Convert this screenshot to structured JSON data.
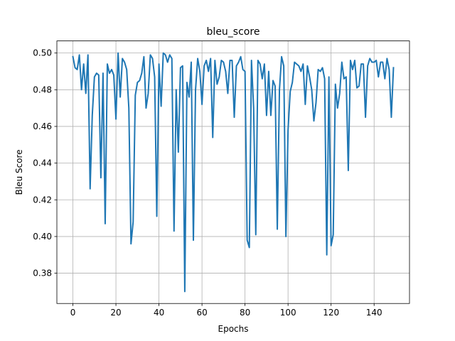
{
  "chart_data": {
    "type": "line",
    "title": "bleu_score",
    "xlabel": "Epochs",
    "ylabel": "Bleu Score",
    "xlim": [
      -7.45,
      156.45
    ],
    "ylim": [
      0.3635,
      0.5066
    ],
    "xticks": [
      0,
      20,
      40,
      60,
      80,
      100,
      120,
      140
    ],
    "xtick_labels": [
      "0",
      "20",
      "40",
      "60",
      "80",
      "100",
      "120",
      "140"
    ],
    "yticks": [
      0.38,
      0.4,
      0.42,
      0.44,
      0.46,
      0.48,
      0.5
    ],
    "ytick_labels": [
      "0.38",
      "0.40",
      "0.42",
      "0.44",
      "0.46",
      "0.48",
      "0.50"
    ],
    "grid": true,
    "line_color": "#1f77b4",
    "series": [
      {
        "name": "",
        "x": [
          0,
          1,
          2,
          3,
          4,
          5,
          6,
          7,
          8,
          9,
          10,
          11,
          12,
          13,
          14,
          15,
          16,
          17,
          18,
          19,
          20,
          21,
          22,
          23,
          24,
          25,
          26,
          27,
          28,
          29,
          30,
          31,
          32,
          33,
          34,
          35,
          36,
          37,
          38,
          39,
          40,
          41,
          42,
          43,
          44,
          45,
          46,
          47,
          48,
          49,
          50,
          51,
          52,
          53,
          54,
          55,
          56,
          57,
          58,
          59,
          60,
          61,
          62,
          63,
          64,
          65,
          66,
          67,
          68,
          69,
          70,
          71,
          72,
          73,
          74,
          75,
          76,
          77,
          78,
          79,
          80,
          81,
          82,
          83,
          84,
          85,
          86,
          87,
          88,
          89,
          90,
          91,
          92,
          93,
          94,
          95,
          96,
          97,
          98,
          99,
          100,
          101,
          102,
          103,
          104,
          105,
          106,
          107,
          108,
          109,
          110,
          111,
          112,
          113,
          114,
          115,
          116,
          117,
          118,
          119,
          120,
          121,
          122,
          123,
          124,
          125,
          126,
          127,
          128,
          129,
          130,
          131,
          132,
          133,
          134,
          135,
          136,
          137,
          138,
          139,
          140,
          141,
          142,
          143,
          144,
          145,
          146,
          147,
          148,
          149
        ],
        "values": [
          0.498,
          0.492,
          0.491,
          0.499,
          0.48,
          0.494,
          0.478,
          0.499,
          0.426,
          0.466,
          0.487,
          0.489,
          0.488,
          0.432,
          0.489,
          0.407,
          0.494,
          0.489,
          0.491,
          0.488,
          0.464,
          0.5,
          0.476,
          0.497,
          0.495,
          0.491,
          0.47,
          0.396,
          0.408,
          0.477,
          0.484,
          0.485,
          0.489,
          0.498,
          0.47,
          0.478,
          0.499,
          0.497,
          0.487,
          0.411,
          0.494,
          0.471,
          0.5,
          0.499,
          0.495,
          0.499,
          0.497,
          0.403,
          0.48,
          0.446,
          0.492,
          0.493,
          0.37,
          0.484,
          0.476,
          0.495,
          0.398,
          0.48,
          0.497,
          0.49,
          0.472,
          0.493,
          0.496,
          0.49,
          0.497,
          0.454,
          0.496,
          0.483,
          0.487,
          0.496,
          0.495,
          0.49,
          0.478,
          0.496,
          0.496,
          0.465,
          0.493,
          0.495,
          0.498,
          0.491,
          0.49,
          0.398,
          0.394,
          0.496,
          0.47,
          0.401,
          0.496,
          0.494,
          0.486,
          0.494,
          0.466,
          0.49,
          0.466,
          0.485,
          0.482,
          0.404,
          0.48,
          0.498,
          0.493,
          0.4,
          0.458,
          0.479,
          0.484,
          0.495,
          0.494,
          0.493,
          0.49,
          0.494,
          0.472,
          0.493,
          0.487,
          0.48,
          0.463,
          0.473,
          0.491,
          0.49,
          0.492,
          0.486,
          0.39,
          0.487,
          0.395,
          0.401,
          0.483,
          0.47,
          0.478,
          0.495,
          0.486,
          0.487,
          0.436,
          0.496,
          0.491,
          0.496,
          0.481,
          0.482,
          0.494,
          0.494,
          0.465,
          0.493,
          0.497,
          0.495,
          0.495,
          0.496,
          0.487,
          0.495,
          0.495,
          0.486,
          0.497,
          0.491,
          0.465,
          0.492
        ]
      }
    ]
  }
}
